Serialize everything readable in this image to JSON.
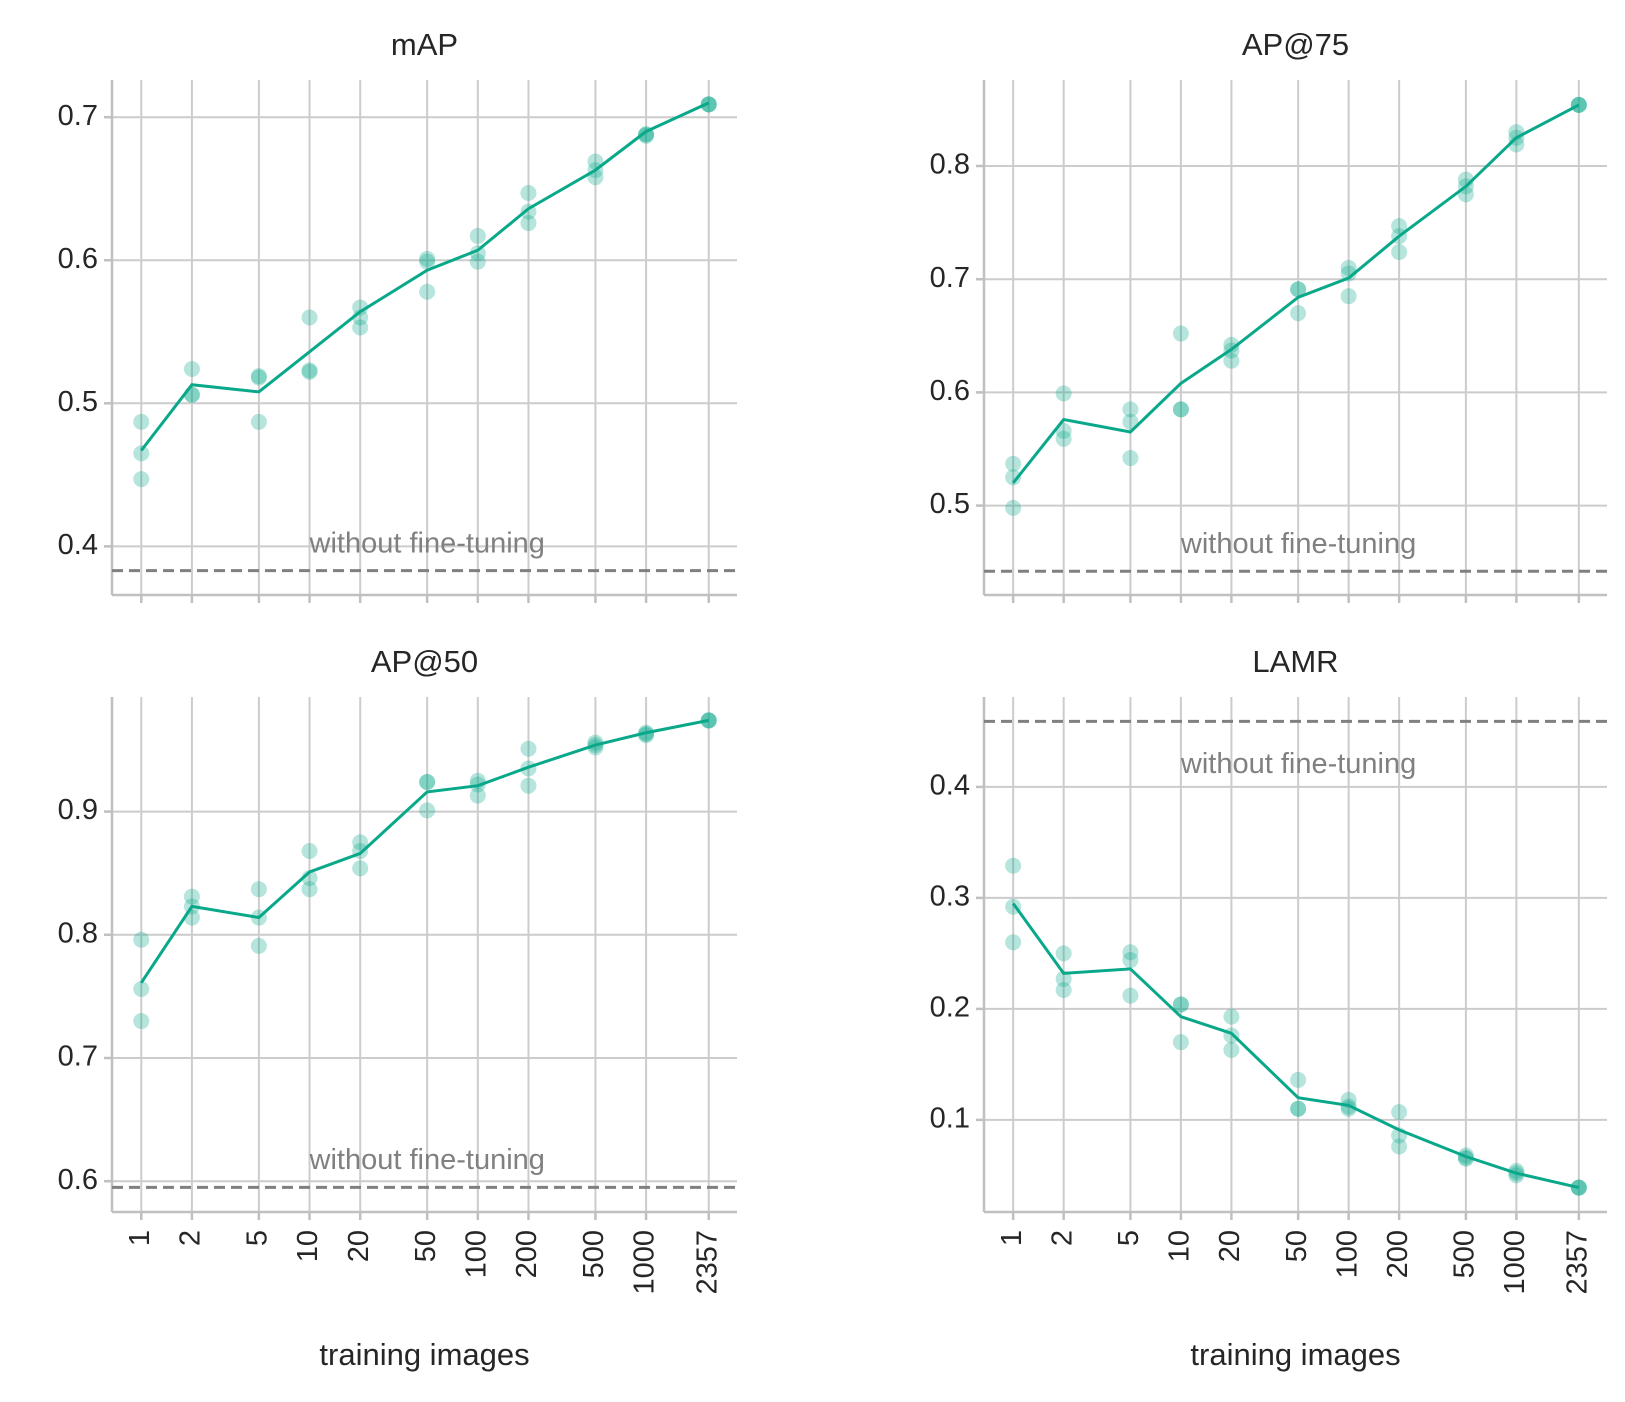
{
  "chart_data": [
    {
      "type": "line",
      "title": "mAP",
      "xscale": "log",
      "xlim": [
        0.67,
        3470
      ],
      "x": [
        1,
        2,
        5,
        10,
        20,
        50,
        100,
        200,
        500,
        1000,
        2357
      ],
      "xticks": [
        1,
        2,
        5,
        10,
        20,
        50,
        100,
        200,
        500,
        1000,
        2357
      ],
      "show_xticklabels": false,
      "ylim": [
        0.366,
        0.726
      ],
      "yticks": [
        0.4,
        0.5,
        0.6,
        0.7
      ],
      "grid": true,
      "series": [
        {
          "style": "line",
          "color": "#0aa88a",
          "values": [
            0.467,
            0.513,
            0.508,
            0.536,
            0.564,
            0.593,
            0.607,
            0.636,
            0.663,
            0.69,
            0.71
          ]
        },
        {
          "style": "points",
          "color": "#0aa88a",
          "values": [
            0.487,
            0.524,
            0.519,
            0.56,
            0.567,
            0.601,
            0.617,
            0.647,
            0.669,
            0.688,
            0.709
          ]
        },
        {
          "style": "points",
          "color": "#0aa88a",
          "values": [
            0.465,
            0.506,
            0.518,
            0.523,
            0.56,
            0.599,
            0.605,
            0.634,
            0.663,
            0.688,
            0.709
          ]
        },
        {
          "style": "points",
          "color": "#0aa88a",
          "values": [
            0.447,
            0.506,
            0.487,
            0.522,
            0.553,
            0.578,
            0.599,
            0.626,
            0.658,
            0.687,
            0.709
          ]
        }
      ],
      "baseline": {
        "value": 0.383,
        "label": "without fine-tuning",
        "color": "#808080"
      }
    },
    {
      "type": "line",
      "title": "AP@75",
      "xscale": "log",
      "xlim": [
        0.67,
        3470
      ],
      "x": [
        1,
        2,
        5,
        10,
        20,
        50,
        100,
        200,
        500,
        1000,
        2357
      ],
      "xticks": [
        1,
        2,
        5,
        10,
        20,
        50,
        100,
        200,
        500,
        1000,
        2357
      ],
      "show_xticklabels": false,
      "ylim": [
        0.421,
        0.876
      ],
      "yticks": [
        0.5,
        0.6,
        0.7,
        0.8
      ],
      "grid": true,
      "series": [
        {
          "style": "line",
          "color": "#0aa88a",
          "values": [
            0.52,
            0.576,
            0.565,
            0.608,
            0.638,
            0.684,
            0.701,
            0.738,
            0.782,
            0.825,
            0.854
          ]
        },
        {
          "style": "points",
          "color": "#0aa88a",
          "values": [
            0.537,
            0.599,
            0.585,
            0.652,
            0.642,
            0.691,
            0.71,
            0.747,
            0.788,
            0.83,
            0.854
          ]
        },
        {
          "style": "points",
          "color": "#0aa88a",
          "values": [
            0.525,
            0.566,
            0.574,
            0.585,
            0.637,
            0.691,
            0.705,
            0.738,
            0.782,
            0.825,
            0.854
          ]
        },
        {
          "style": "points",
          "color": "#0aa88a",
          "values": [
            0.498,
            0.559,
            0.542,
            0.585,
            0.628,
            0.67,
            0.685,
            0.724,
            0.775,
            0.819,
            0.854
          ]
        }
      ],
      "baseline": {
        "value": 0.442,
        "label": "without fine-tuning",
        "color": "#808080"
      }
    },
    {
      "type": "line",
      "title": "AP@50",
      "xscale": "log",
      "xlim": [
        0.67,
        3470
      ],
      "x": [
        1,
        2,
        5,
        10,
        20,
        50,
        100,
        200,
        500,
        1000,
        2357
      ],
      "xticks": [
        1,
        2,
        5,
        10,
        20,
        50,
        100,
        200,
        500,
        1000,
        2357
      ],
      "show_xticklabels": true,
      "xlabel": "training images",
      "ylim": [
        0.575,
        0.993
      ],
      "yticks": [
        0.6,
        0.7,
        0.8,
        0.9
      ],
      "grid": true,
      "series": [
        {
          "style": "line",
          "color": "#0aa88a",
          "values": [
            0.761,
            0.823,
            0.814,
            0.851,
            0.866,
            0.916,
            0.921,
            0.936,
            0.954,
            0.964,
            0.974
          ]
        },
        {
          "style": "points",
          "color": "#0aa88a",
          "values": [
            0.796,
            0.831,
            0.837,
            0.868,
            0.875,
            0.924,
            0.925,
            0.951,
            0.956,
            0.964,
            0.974
          ]
        },
        {
          "style": "points",
          "color": "#0aa88a",
          "values": [
            0.756,
            0.823,
            0.814,
            0.846,
            0.868,
            0.924,
            0.922,
            0.935,
            0.954,
            0.963,
            0.974
          ]
        },
        {
          "style": "points",
          "color": "#0aa88a",
          "values": [
            0.73,
            0.814,
            0.791,
            0.837,
            0.854,
            0.901,
            0.913,
            0.921,
            0.952,
            0.962,
            0.974
          ]
        }
      ],
      "baseline": {
        "value": 0.595,
        "label": "without fine-tuning",
        "color": "#808080"
      }
    },
    {
      "type": "line",
      "title": "LAMR",
      "xscale": "log",
      "xlim": [
        0.67,
        3470
      ],
      "x": [
        1,
        2,
        5,
        10,
        20,
        50,
        100,
        200,
        500,
        1000,
        2357
      ],
      "xticks": [
        1,
        2,
        5,
        10,
        20,
        50,
        100,
        200,
        500,
        1000,
        2357
      ],
      "show_xticklabels": true,
      "xlabel": "training images",
      "ylim": [
        0.017,
        0.481
      ],
      "yticks": [
        0.1,
        0.2,
        0.3,
        0.4
      ],
      "grid": true,
      "series": [
        {
          "style": "line",
          "color": "#0aa88a",
          "values": [
            0.295,
            0.232,
            0.236,
            0.193,
            0.178,
            0.12,
            0.113,
            0.091,
            0.067,
            0.052,
            0.039
          ]
        },
        {
          "style": "points",
          "color": "#0aa88a",
          "values": [
            0.329,
            0.25,
            0.251,
            0.204,
            0.193,
            0.136,
            0.118,
            0.107,
            0.068,
            0.054,
            0.039
          ]
        },
        {
          "style": "points",
          "color": "#0aa88a",
          "values": [
            0.292,
            0.227,
            0.244,
            0.204,
            0.176,
            0.11,
            0.112,
            0.086,
            0.066,
            0.052,
            0.039
          ]
        },
        {
          "style": "points",
          "color": "#0aa88a",
          "values": [
            0.26,
            0.217,
            0.212,
            0.17,
            0.163,
            0.11,
            0.11,
            0.076,
            0.065,
            0.05,
            0.039
          ]
        }
      ],
      "baseline": {
        "value": 0.459,
        "label": "without fine-tuning",
        "color": "#808080"
      }
    }
  ]
}
